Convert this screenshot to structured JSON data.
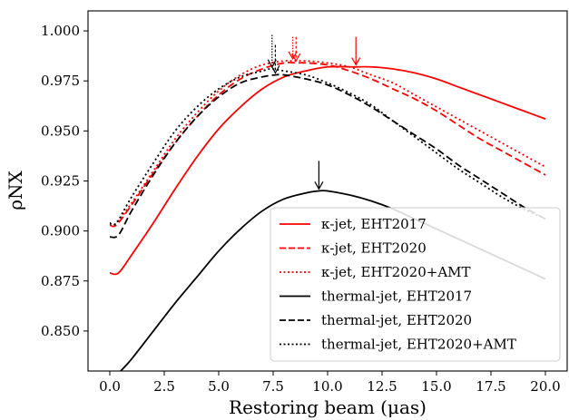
{
  "chart_data": {
    "type": "line",
    "xlabel": "Restoring beam (μas)",
    "ylabel": "ρNX",
    "xlim": [
      -1.0,
      21.0
    ],
    "ylim": [
      0.83,
      1.01
    ],
    "xticks": [
      0.0,
      2.5,
      5.0,
      7.5,
      10.0,
      12.5,
      15.0,
      17.5,
      20.0
    ],
    "xtick_labels": [
      "0.0",
      "2.5",
      "5.0",
      "7.5",
      "10.0",
      "12.5",
      "15.0",
      "17.5",
      "20.0"
    ],
    "yticks": [
      0.85,
      0.875,
      0.9,
      0.925,
      0.95,
      0.975,
      1.0
    ],
    "ytick_labels": [
      "0.850",
      "0.875",
      "0.900",
      "0.925",
      "0.950",
      "0.975",
      "1.000"
    ],
    "grid": false,
    "legend_position": "lower-right",
    "series": [
      {
        "name": "κ-jet, EHT2017",
        "color": "#ff0000",
        "linestyle": "solid",
        "x": [
          0,
          0.4,
          1,
          2,
          3,
          4,
          5,
          6,
          7,
          8,
          9,
          10,
          11.3,
          12,
          13,
          14,
          15,
          16,
          17,
          18,
          19,
          20
        ],
        "y": [
          0.879,
          0.879,
          0.888,
          0.904,
          0.921,
          0.937,
          0.951,
          0.962,
          0.971,
          0.977,
          0.98,
          0.982,
          0.982,
          0.982,
          0.981,
          0.979,
          0.976,
          0.972,
          0.968,
          0.964,
          0.96,
          0.956
        ]
      },
      {
        "name": "κ-jet, EHT2020",
        "color": "#ff0000",
        "linestyle": "dashed",
        "x": [
          0,
          0.3,
          1,
          2,
          3,
          4,
          5,
          6,
          7,
          8,
          8.6,
          9,
          10,
          11,
          12,
          13,
          14,
          15,
          16,
          17,
          18,
          19,
          20
        ],
        "y": [
          0.903,
          0.903,
          0.913,
          0.929,
          0.944,
          0.957,
          0.968,
          0.976,
          0.981,
          0.984,
          0.984,
          0.984,
          0.983,
          0.98,
          0.976,
          0.971,
          0.966,
          0.96,
          0.953,
          0.946,
          0.94,
          0.934,
          0.928
        ]
      },
      {
        "name": "κ-jet, EHT2020+AMT",
        "color": "#ff0000",
        "linestyle": "dotted",
        "x": [
          0,
          0.3,
          1,
          2,
          3,
          4,
          5,
          6,
          7,
          8,
          8.4,
          9,
          10,
          11,
          12,
          13,
          14,
          15,
          16,
          17,
          18,
          19,
          20
        ],
        "y": [
          0.903,
          0.904,
          0.914,
          0.93,
          0.946,
          0.959,
          0.97,
          0.978,
          0.983,
          0.985,
          0.985,
          0.985,
          0.984,
          0.982,
          0.978,
          0.974,
          0.968,
          0.962,
          0.956,
          0.95,
          0.944,
          0.938,
          0.932
        ]
      },
      {
        "name": "thermal-jet, EHT2017",
        "color": "#000000",
        "linestyle": "solid",
        "x": [
          0.5,
          1,
          2,
          3,
          4,
          5,
          6,
          7,
          8,
          9,
          9.6,
          10,
          11,
          12,
          13,
          14,
          15,
          16,
          17,
          18,
          19,
          20
        ],
        "y": [
          0.83,
          0.836,
          0.85,
          0.864,
          0.877,
          0.89,
          0.901,
          0.91,
          0.916,
          0.919,
          0.92,
          0.92,
          0.918,
          0.915,
          0.911,
          0.906,
          0.901,
          0.896,
          0.891,
          0.886,
          0.881,
          0.876
        ]
      },
      {
        "name": "thermal-jet, EHT2020",
        "color": "#000000",
        "linestyle": "dashed",
        "x": [
          0,
          0.4,
          1,
          2,
          3,
          4,
          5,
          6,
          7,
          7.6,
          8,
          9,
          10,
          11,
          12,
          13,
          14,
          15,
          16,
          17,
          18,
          19,
          20
        ],
        "y": [
          0.897,
          0.898,
          0.91,
          0.928,
          0.944,
          0.957,
          0.967,
          0.974,
          0.977,
          0.978,
          0.978,
          0.976,
          0.973,
          0.968,
          0.962,
          0.955,
          0.948,
          0.941,
          0.933,
          0.926,
          0.919,
          0.912,
          0.906
        ]
      },
      {
        "name": "thermal-jet, EHT2020+AMT",
        "color": "#000000",
        "linestyle": "dotted",
        "x": [
          0,
          0.3,
          1,
          2,
          3,
          4,
          5,
          6,
          7,
          7.4,
          8,
          9,
          10,
          11,
          12,
          13,
          14,
          15,
          16,
          17,
          18,
          19,
          20
        ],
        "y": [
          0.904,
          0.904,
          0.917,
          0.934,
          0.95,
          0.962,
          0.971,
          0.977,
          0.98,
          0.981,
          0.98,
          0.978,
          0.974,
          0.969,
          0.963,
          0.955,
          0.947,
          0.939,
          0.931,
          0.924,
          0.917,
          0.911,
          0.906
        ]
      }
    ],
    "annotations": [
      {
        "type": "arrow",
        "x": 11.3,
        "y_from": 0.997,
        "y_to": 0.983,
        "color": "#ff0000",
        "linestyle": "solid"
      },
      {
        "type": "arrow",
        "x": 8.55,
        "y_from": 0.997,
        "y_to": 0.985,
        "color": "#ff0000",
        "linestyle": "dashed"
      },
      {
        "type": "arrow",
        "x": 8.4,
        "y_from": 0.997,
        "y_to": 0.986,
        "color": "#ff0000",
        "linestyle": "dotted"
      },
      {
        "type": "arrow",
        "x": 9.6,
        "y_from": 0.935,
        "y_to": 0.921,
        "color": "#000000",
        "linestyle": "solid"
      },
      {
        "type": "arrow",
        "x": 7.6,
        "y_from": 0.993,
        "y_to": 0.979,
        "color": "#000000",
        "linestyle": "dashed"
      },
      {
        "type": "arrow",
        "x": 7.45,
        "y_from": 0.998,
        "y_to": 0.982,
        "color": "#000000",
        "linestyle": "dotted"
      }
    ]
  }
}
